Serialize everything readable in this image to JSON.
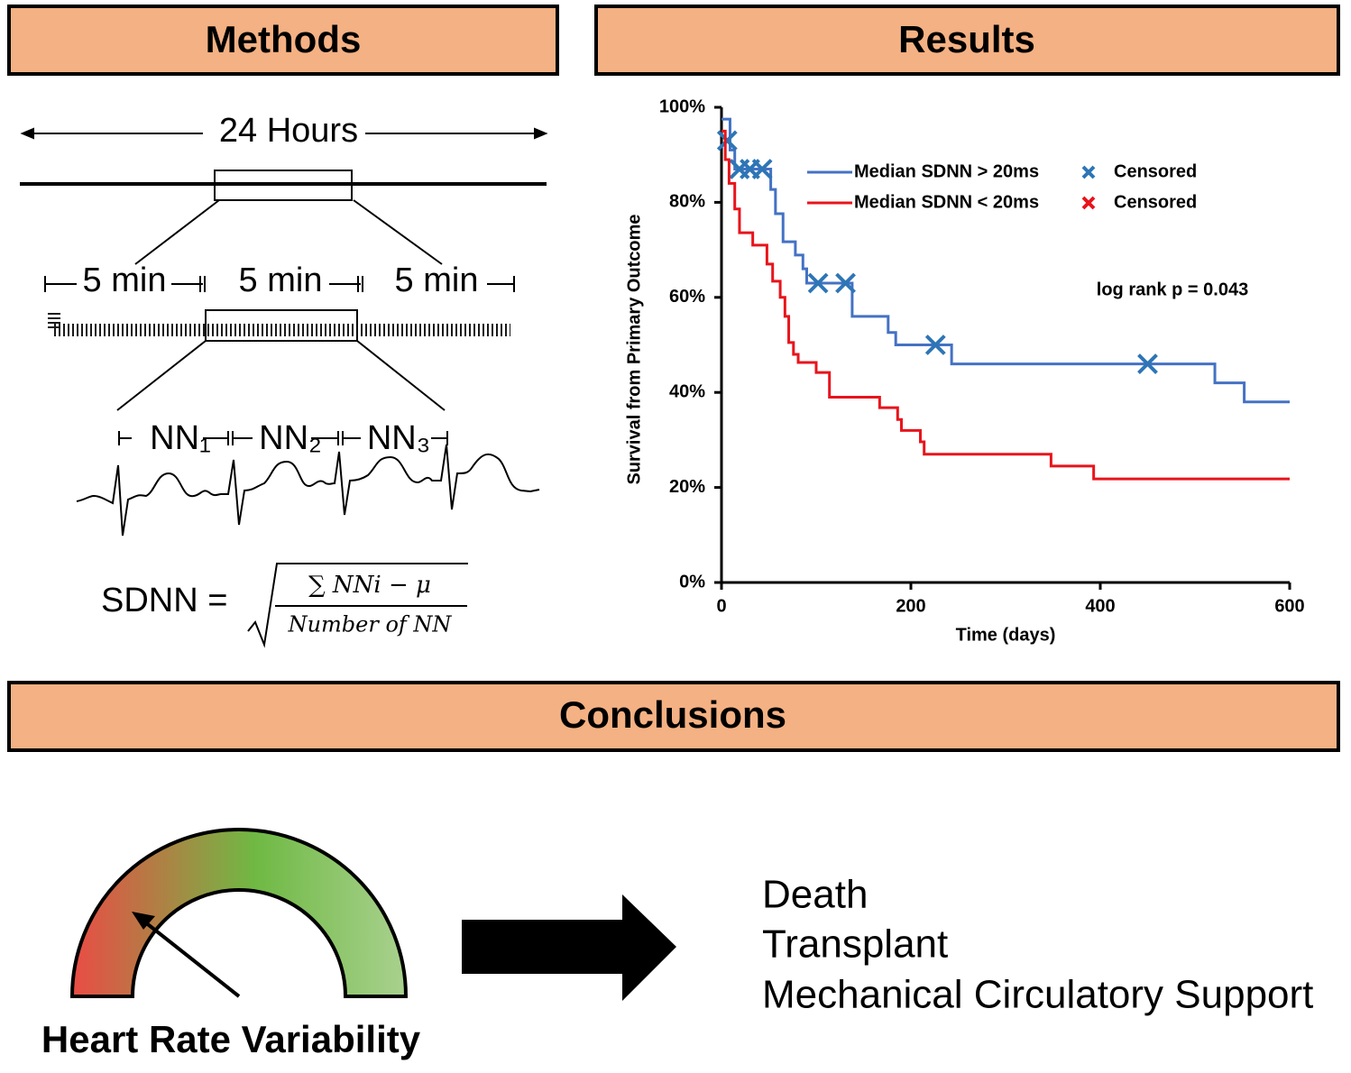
{
  "methods": {
    "title": "Methods",
    "duration": "24 Hours",
    "segments": [
      "5 min",
      "5 min",
      "5 min"
    ],
    "intervals": [
      "NN₁",
      "NN₂",
      "NN₃"
    ],
    "formula": {
      "lhs": "SDNN =",
      "numerator": "∑ NNi − μ",
      "denominator": "Number of NN"
    }
  },
  "results_title": "Results",
  "chart_data": {
    "type": "line",
    "xlabel": "Time (days)",
    "ylabel": "Survival from Primary Outcome",
    "annotation": "log rank p = 0.043",
    "xlim": [
      0,
      600
    ],
    "xticks": [
      0,
      200,
      400,
      600
    ],
    "ylim": [
      0,
      100
    ],
    "yticks": [
      {
        "value": 0,
        "label": "0%"
      },
      {
        "value": 20,
        "label": "20%"
      },
      {
        "value": 40,
        "label": "40%"
      },
      {
        "value": 60,
        "label": "60%"
      },
      {
        "value": 80,
        "label": "80%"
      },
      {
        "value": 100,
        "label": "100%"
      }
    ],
    "series": [
      {
        "name": "Median SDNN > 20ms",
        "color": "#4472c4",
        "censored_name": "Censored",
        "censored_color": "#2e75b6",
        "x": [
          0,
          9,
          9,
          14,
          14,
          52,
          52,
          57,
          57,
          65,
          65,
          78,
          78,
          86,
          86,
          90,
          90,
          138,
          138,
          176,
          176,
          184,
          184,
          243,
          243,
          521,
          521,
          552,
          552,
          600
        ],
        "values": [
          97.5,
          97.5,
          91,
          91,
          87,
          87,
          82.7,
          82.7,
          77.6,
          77.6,
          71.7,
          71.7,
          68.9,
          68.9,
          66,
          66,
          63,
          63,
          56,
          56,
          52.6,
          52.6,
          50,
          50,
          46,
          46,
          42,
          42,
          38,
          38
        ],
        "censored_x": [
          6,
          19,
          30,
          43,
          102,
          131,
          226,
          450
        ],
        "censored_values": [
          93,
          87,
          87,
          87,
          63,
          63,
          50,
          46
        ]
      },
      {
        "name": "Median SDNN < 20ms",
        "color": "#e8141b",
        "censored_name": "Censored",
        "censored_color": "#e8141b",
        "x": [
          0,
          4,
          4,
          8,
          8,
          14,
          14,
          19,
          19,
          33,
          33,
          48,
          48,
          54,
          54,
          62,
          62,
          67,
          67,
          71,
          71,
          76,
          76,
          81,
          81,
          100,
          100,
          114,
          114,
          167,
          167,
          186,
          186,
          190,
          190,
          210,
          210,
          214,
          214,
          348,
          348,
          393,
          393,
          600
        ],
        "values": [
          95,
          95,
          89,
          89,
          84,
          84,
          78.6,
          78.6,
          73.6,
          73.6,
          71,
          71,
          67,
          67,
          63.4,
          63.4,
          60,
          60,
          56,
          56,
          50.5,
          50.5,
          48,
          48,
          46.3,
          46.3,
          44.2,
          44.2,
          39,
          39,
          36.8,
          36.8,
          34.3,
          34.3,
          32,
          32,
          29.6,
          29.6,
          27,
          27,
          24.5,
          24.5,
          21.8,
          21.8
        ],
        "censored_x": [],
        "censored_values": []
      }
    ]
  },
  "conclusions": {
    "title": "Conclusions",
    "gauge_label": "Heart Rate Variability",
    "outcomes": [
      "Death",
      "Transplant",
      "Mechanical Circulatory Support"
    ]
  }
}
